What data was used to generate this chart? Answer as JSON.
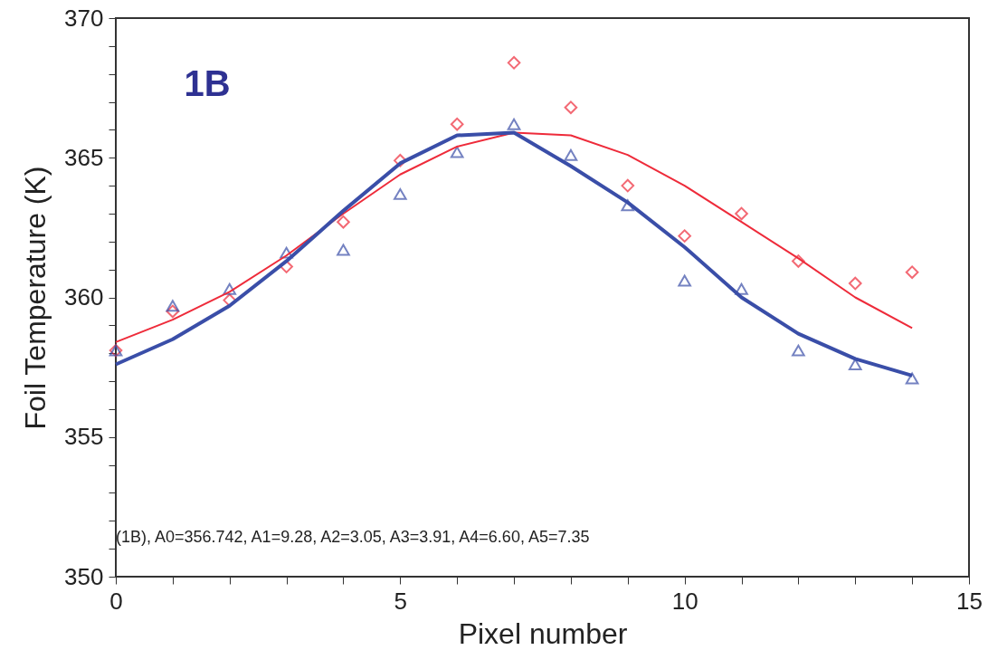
{
  "chart_data": {
    "type": "scatter",
    "xlabel": "Pixel number",
    "ylabel": "Foil Temperature (K)",
    "x": [
      0,
      1,
      2,
      3,
      4,
      5,
      6,
      7,
      8,
      9,
      10,
      11,
      12,
      13,
      14
    ],
    "xlim": [
      0,
      15
    ],
    "ylim": [
      350,
      370
    ],
    "xticks": [
      0,
      {
        "value": 1,
        "label": null
      },
      {
        "value": 2,
        "label": null
      },
      {
        "value": 3,
        "label": null
      },
      {
        "value": 4,
        "label": null
      },
      5,
      {
        "value": 6,
        "label": null
      },
      {
        "value": 7,
        "label": null
      },
      {
        "value": 8,
        "label": null
      },
      {
        "value": 9,
        "label": null
      },
      10,
      {
        "value": 11,
        "label": null
      },
      {
        "value": 12,
        "label": null
      },
      {
        "value": 13,
        "label": null
      },
      {
        "value": 14,
        "label": null
      },
      15
    ],
    "yticks": [
      350,
      {
        "value": 351,
        "label": null
      },
      {
        "value": 352,
        "label": null
      },
      {
        "value": 353,
        "label": null
      },
      {
        "value": 354,
        "label": null
      },
      355,
      {
        "value": 356,
        "label": null
      },
      {
        "value": 357,
        "label": null
      },
      {
        "value": 358,
        "label": null
      },
      {
        "value": 359,
        "label": null
      },
      360,
      {
        "value": 361,
        "label": null
      },
      {
        "value": 362,
        "label": null
      },
      {
        "value": 363,
        "label": null
      },
      {
        "value": 364,
        "label": null
      },
      365,
      {
        "value": 366,
        "label": null
      },
      {
        "value": 367,
        "label": null
      },
      {
        "value": 368,
        "label": null
      },
      {
        "value": 369,
        "label": null
      },
      370
    ],
    "grid": false,
    "series": [
      {
        "type": "scatter",
        "marker": "diamond",
        "color": "#ee2b3a",
        "values": [
          358.1,
          359.5,
          359.9,
          361.1,
          362.7,
          364.9,
          366.2,
          368.4,
          366.8,
          364.0,
          362.2,
          363.0,
          361.3,
          360.5,
          360.9
        ]
      },
      {
        "type": "scatter",
        "marker": "triangle",
        "color": "#3a4ea8",
        "values": [
          358.1,
          359.7,
          360.3,
          361.6,
          361.7,
          363.7,
          365.2,
          366.2,
          365.1,
          363.3,
          360.6,
          360.3,
          358.1,
          357.6,
          357.1
        ]
      },
      {
        "type": "line",
        "marker": "none",
        "color": "#ee2b3a",
        "values": [
          358.4,
          359.2,
          360.2,
          361.5,
          363.0,
          364.4,
          365.4,
          365.9,
          365.8,
          365.1,
          364.0,
          362.7,
          361.4,
          360.0,
          358.9
        ]
      },
      {
        "type": "line",
        "marker": "none",
        "color": "#3a4ea8",
        "values": [
          357.6,
          358.5,
          359.7,
          361.3,
          363.1,
          364.8,
          365.8,
          365.9,
          364.7,
          363.4,
          361.8,
          360.0,
          358.7,
          357.8,
          357.2
        ]
      }
    ],
    "annotations": [
      "1B",
      "(1B), A0=356.742, A1=9.28, A2=3.05, A3=3.91, A4=6.60, A5=7.35"
    ]
  }
}
